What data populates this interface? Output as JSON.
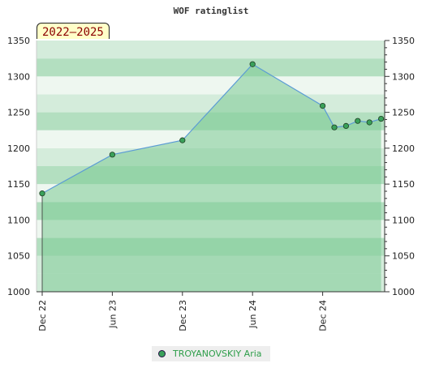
{
  "chart_data": {
    "type": "area",
    "title": "WOF ratinglist",
    "period_badge": "2022–2025",
    "ylim": [
      1000,
      1350
    ],
    "y_ticks": [
      1000,
      1050,
      1100,
      1150,
      1200,
      1250,
      1300,
      1350
    ],
    "x_ticks": [
      "Dec 22",
      "Jun 23",
      "Dec 23",
      "Jun 24",
      "Dec 24"
    ],
    "series": [
      {
        "name": "TROYANOVSKIY Aria",
        "points": [
          {
            "x": "Dec 22",
            "y": 1137
          },
          {
            "x": "Jun 23",
            "y": 1191
          },
          {
            "x": "Dec 23",
            "y": 1211
          },
          {
            "x": "Jun 24",
            "y": 1317
          },
          {
            "x": "Dec 24",
            "y": 1259
          },
          {
            "x": "Jan 25",
            "y": 1229
          },
          {
            "x": "Feb 25",
            "y": 1231
          },
          {
            "x": "Mar 25",
            "y": 1238
          },
          {
            "x": "Apr 25",
            "y": 1236
          },
          {
            "x": "May 25",
            "y": 1241
          }
        ]
      }
    ],
    "legend_position": "bottom",
    "colors": {
      "fill": "#7ccb93",
      "line": "#5b9bd5",
      "marker": "#3aa15a",
      "band_light": "#eef7f0",
      "band_mid": "#d4ecdb",
      "band_dark": "#b3dfc0"
    }
  }
}
